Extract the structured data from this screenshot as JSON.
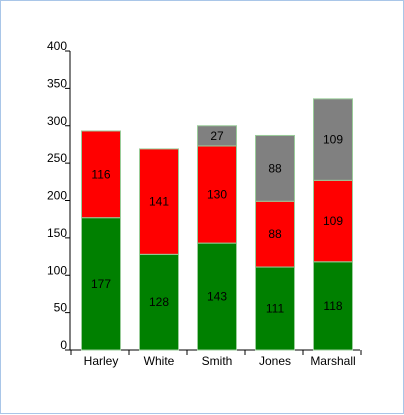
{
  "chart_data": {
    "type": "bar",
    "stacked": true,
    "categories": [
      "Harley",
      "White",
      "Smith",
      "Jones",
      "Marshall"
    ],
    "series": [
      {
        "values": [
          177,
          128,
          143,
          111,
          118
        ],
        "color": "#008000"
      },
      {
        "values": [
          116,
          141,
          130,
          88,
          109
        ],
        "color": "#ff0000"
      },
      {
        "values": [
          0,
          0,
          27,
          88,
          109
        ],
        "color": "#808080"
      }
    ],
    "ylim": [
      0,
      400
    ],
    "yticks": [
      0,
      50,
      100,
      150,
      200,
      250,
      300,
      350,
      400
    ],
    "title": "",
    "xlabel": "",
    "ylabel": "",
    "grid": false,
    "legend": "none"
  }
}
